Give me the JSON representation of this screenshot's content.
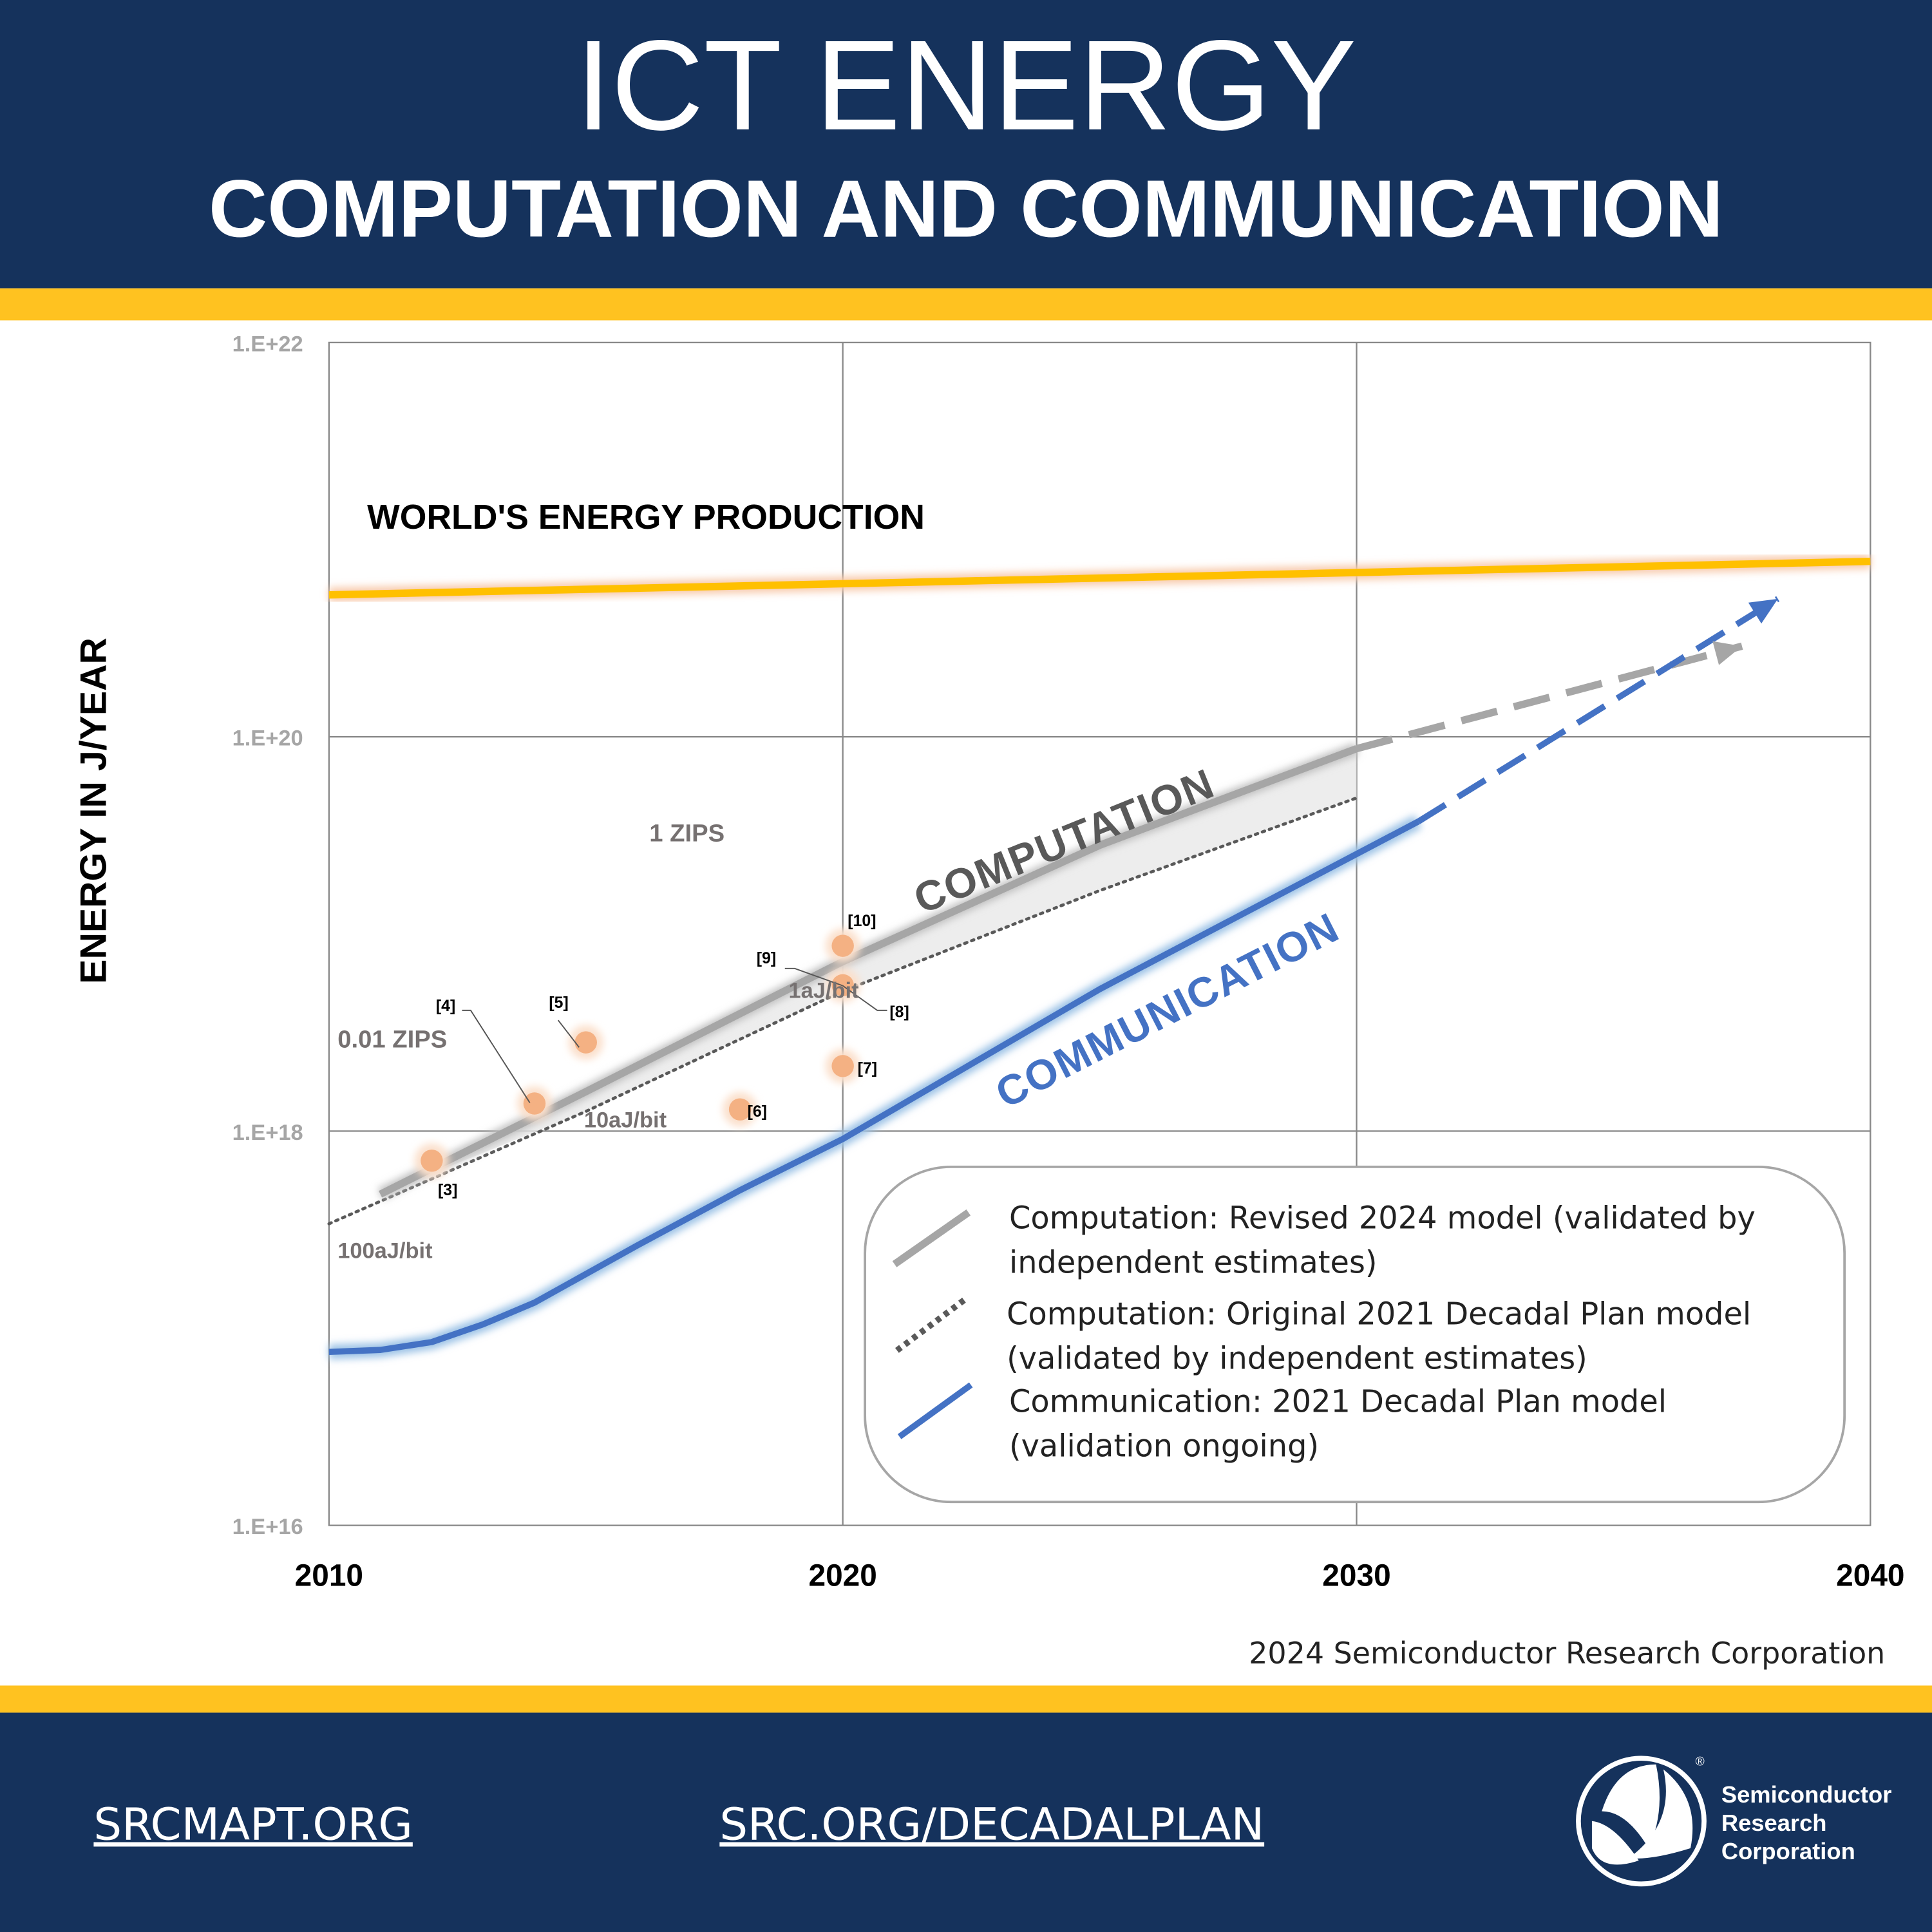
{
  "header": {
    "title": "ICT ENERGY",
    "subtitle": "COMPUTATION AND COMMUNICATION"
  },
  "colors": {
    "navy": "#15325c",
    "gold": "#ffc220",
    "blue": "#4472c4",
    "gray": "#a6a6a6",
    "orange": "#f4b183"
  },
  "chart_data": {
    "type": "line",
    "xlabel": "",
    "ylabel": "ENERGY IN J/YEAR",
    "xlim": [
      2010,
      2040
    ],
    "ylim_log10": [
      16,
      22
    ],
    "y_scale": "log",
    "x_ticks": [
      "2010",
      "2020",
      "2030",
      "2040"
    ],
    "x_tick_values": [
      2010,
      2020,
      2030,
      2040
    ],
    "y_ticks": [
      "1.E+22",
      "1.E+20",
      "1.E+18",
      "1.E+16"
    ],
    "y_tick_values": [
      22,
      20,
      18,
      16
    ],
    "grid": true,
    "series": [
      {
        "name": "World's energy production",
        "label": "WORLD'S ENERGY PRODUCTION",
        "x": [
          2010,
          2040
        ],
        "log10_y": [
          20.72,
          20.89
        ]
      },
      {
        "name": "Computation: Revised 2024 model (validated by independent estimates)",
        "label": "COMPUTATION",
        "x": [
          2011,
          2015,
          2020,
          2025,
          2030
        ],
        "log10_y": [
          17.68,
          18.2,
          18.86,
          19.45,
          19.94
        ],
        "projection_x": [
          2030,
          2037.5
        ],
        "projection_log10_y": [
          19.94,
          20.46
        ]
      },
      {
        "name": "Computation: Original 2021 Decadal Plan model (validated by independent estimates)",
        "x": [
          2010,
          2015,
          2020,
          2025,
          2030
        ],
        "log10_y": [
          17.53,
          18.1,
          18.71,
          19.22,
          19.69
        ]
      },
      {
        "name": "Communication: 2021 Decadal Plan model (validation ongoing)",
        "label": "COMMUNICATION",
        "x": [
          2010,
          2011,
          2012,
          2013,
          2014,
          2016,
          2018,
          2020,
          2025,
          2031.2
        ],
        "log10_y": [
          16.88,
          16.89,
          16.93,
          17.02,
          17.13,
          17.42,
          17.7,
          17.96,
          18.72,
          19.57
        ],
        "projection_x": [
          2031.2,
          2038.2
        ],
        "projection_log10_y": [
          19.57,
          20.7
        ]
      }
    ],
    "points": [
      {
        "ref": "[3]",
        "x": 2012,
        "log10_y": 17.85
      },
      {
        "ref": "[4]",
        "x": 2014,
        "log10_y": 18.14
      },
      {
        "ref": "[5]",
        "x": 2015,
        "log10_y": 18.45
      },
      {
        "ref": "[6]",
        "x": 2018,
        "log10_y": 18.11
      },
      {
        "ref": "[7]",
        "x": 2020,
        "log10_y": 18.33
      },
      {
        "ref": "[8]",
        "x": 2020,
        "log10_y": 18.74
      },
      {
        "ref": "[9]",
        "x": 2020,
        "log10_y": 18.8
      },
      {
        "ref": "[10]",
        "x": 2020,
        "log10_y": 18.94
      }
    ],
    "annotations": {
      "zips1": "1 ZIPS",
      "zips001": "0.01 ZIPS",
      "aj100": "100aJ/bit",
      "aj10": "10aJ/bit",
      "aj1": "1aJ/bit"
    },
    "legend": {
      "placement": "bottom-right",
      "items": [
        {
          "line1": "Computation: Revised 2024 model (validated by",
          "line2": "independent estimates)"
        },
        {
          "line1": "Computation: Original 2021 Decadal Plan model",
          "line2": "(validated by independent estimates)"
        },
        {
          "line1": "Communication: 2021 Decadal Plan model",
          "line2": "(validation ongoing)"
        }
      ]
    }
  },
  "credit": "2024 Semiconductor Research Corporation",
  "footer": {
    "link1": "SRCMAPT.ORG",
    "link2": "SRC.ORG/DECADALPLAN",
    "logo": {
      "line1": "Semiconductor",
      "line2": "Research",
      "line3": "Corporation",
      "reg": "®"
    }
  }
}
